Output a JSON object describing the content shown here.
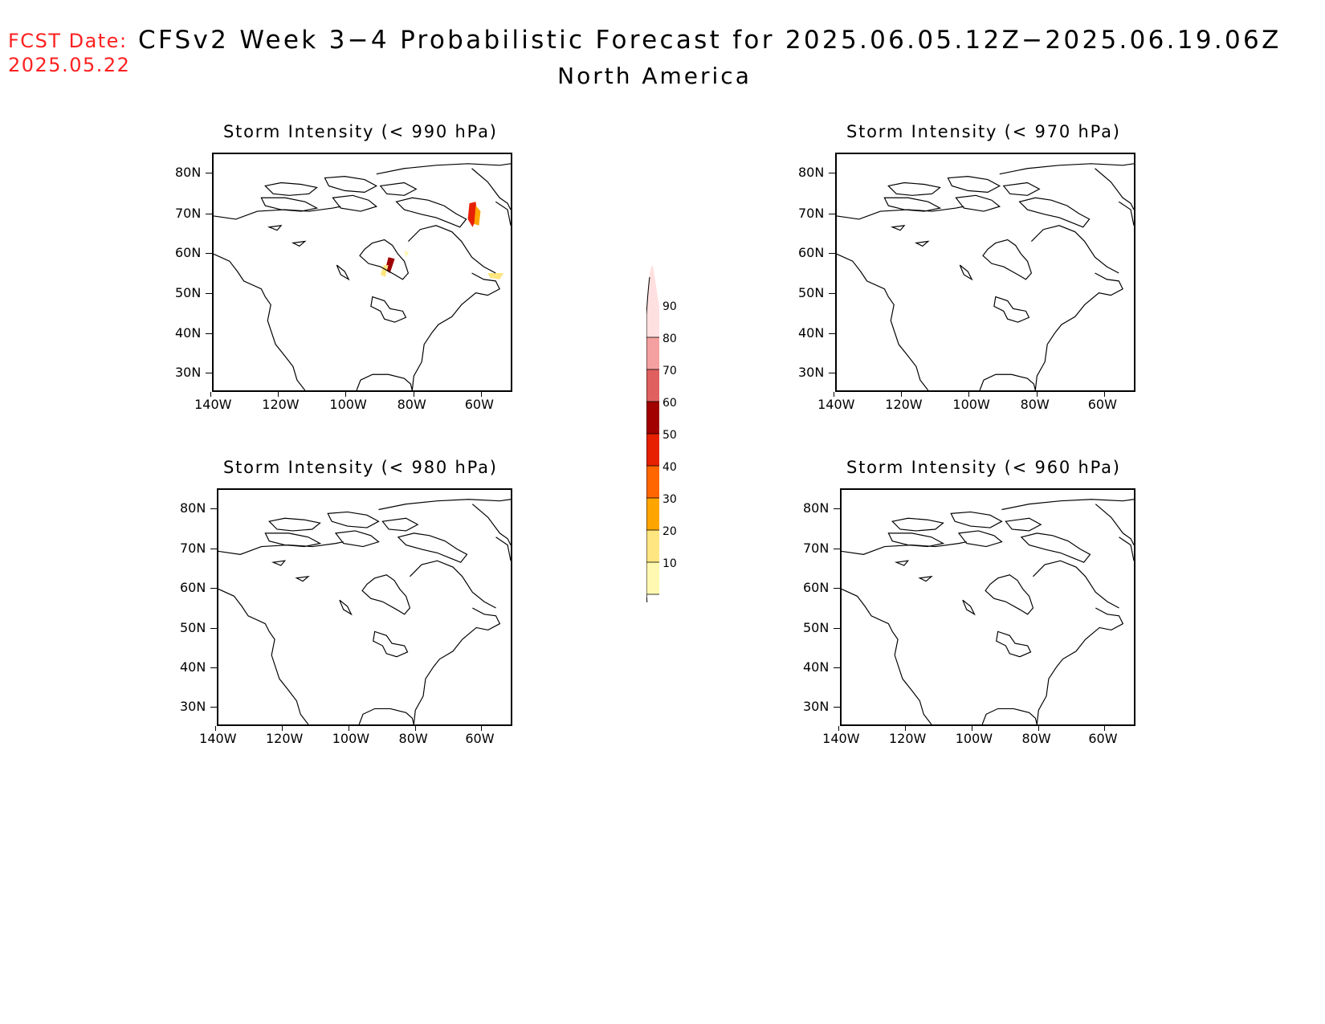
{
  "header": {
    "fcst_label": "FCST Date:",
    "fcst_date": "2025.05.22",
    "title": "CFSv2 Week 3−4 Probabilistic Forecast for 2025.06.05.12Z−2025.06.19.06Z",
    "subtitle": "North America"
  },
  "axes": {
    "lat_labels": [
      "80N",
      "70N",
      "60N",
      "50N",
      "40N",
      "30N"
    ],
    "lon_labels": [
      "140W",
      "120W",
      "100W",
      "80W",
      "60W"
    ]
  },
  "panels": [
    {
      "title": "Storm Intensity (< 990 hPa)",
      "threshold_hPa": 990,
      "probability_areas": [
        {
          "region": "Baffin Island",
          "max_prob": 60
        },
        {
          "region": "Hudson Bay south",
          "max_prob": 60
        },
        {
          "region": "Labrador coast",
          "max_prob": 30
        }
      ]
    },
    {
      "title": "Storm Intensity (< 970 hPa)",
      "threshold_hPa": 970,
      "probability_areas": []
    },
    {
      "title": "Storm Intensity (< 980 hPa)",
      "threshold_hPa": 980,
      "probability_areas": []
    },
    {
      "title": "Storm Intensity (< 960 hPa)",
      "threshold_hPa": 960,
      "probability_areas": []
    }
  ],
  "colorbar": {
    "levels": [
      "10",
      "20",
      "30",
      "40",
      "50",
      "60",
      "70",
      "80",
      "90"
    ],
    "colors": [
      "#fff8b0",
      "#ffe680",
      "#ffa500",
      "#ff6600",
      "#e62000",
      "#a00000",
      "#e06060",
      "#f4a0a0",
      "#ffe0e0"
    ]
  }
}
